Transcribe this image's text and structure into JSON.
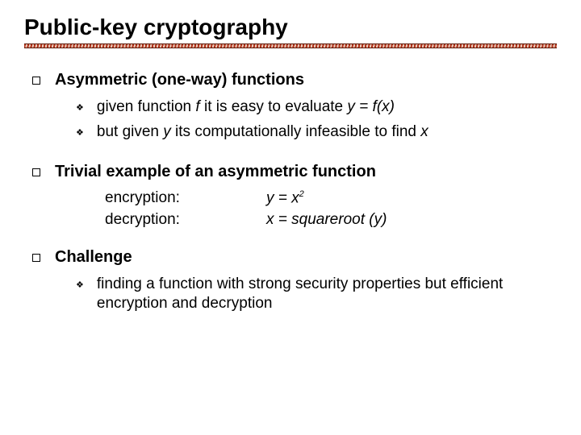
{
  "title": "Public-key cryptography",
  "colors": {
    "text": "#000000",
    "background": "#ffffff",
    "divider_dark": "#b03018",
    "divider_light": "#e8c8b8",
    "divider_border": "#5a1808"
  },
  "typography": {
    "font_family": "Comic Sans MS",
    "title_fontsize": 28,
    "l1_fontsize": 20,
    "l2_fontsize": 19
  },
  "sections": [
    {
      "heading": "Asymmetric (one-way) functions",
      "bullets": [
        {
          "prefix": "given function ",
          "italic1": "f",
          "mid": "  it is easy to evaluate ",
          "italic2": "y = f(x)"
        },
        {
          "prefix": "but given ",
          "italic1": "y",
          "mid": " its computationally infeasible to find ",
          "italic2": "x"
        }
      ]
    },
    {
      "heading": "Trivial example of an asymmetric function",
      "examples": [
        {
          "label": "encryption:",
          "lhs": "y = x",
          "sup": "2"
        },
        {
          "label": "decryption:",
          "lhs": "x = squareroot (y)"
        }
      ]
    },
    {
      "heading": "Challenge",
      "bullets_plain": [
        "finding a function with strong security properties but efficient encryption and decryption"
      ]
    }
  ]
}
